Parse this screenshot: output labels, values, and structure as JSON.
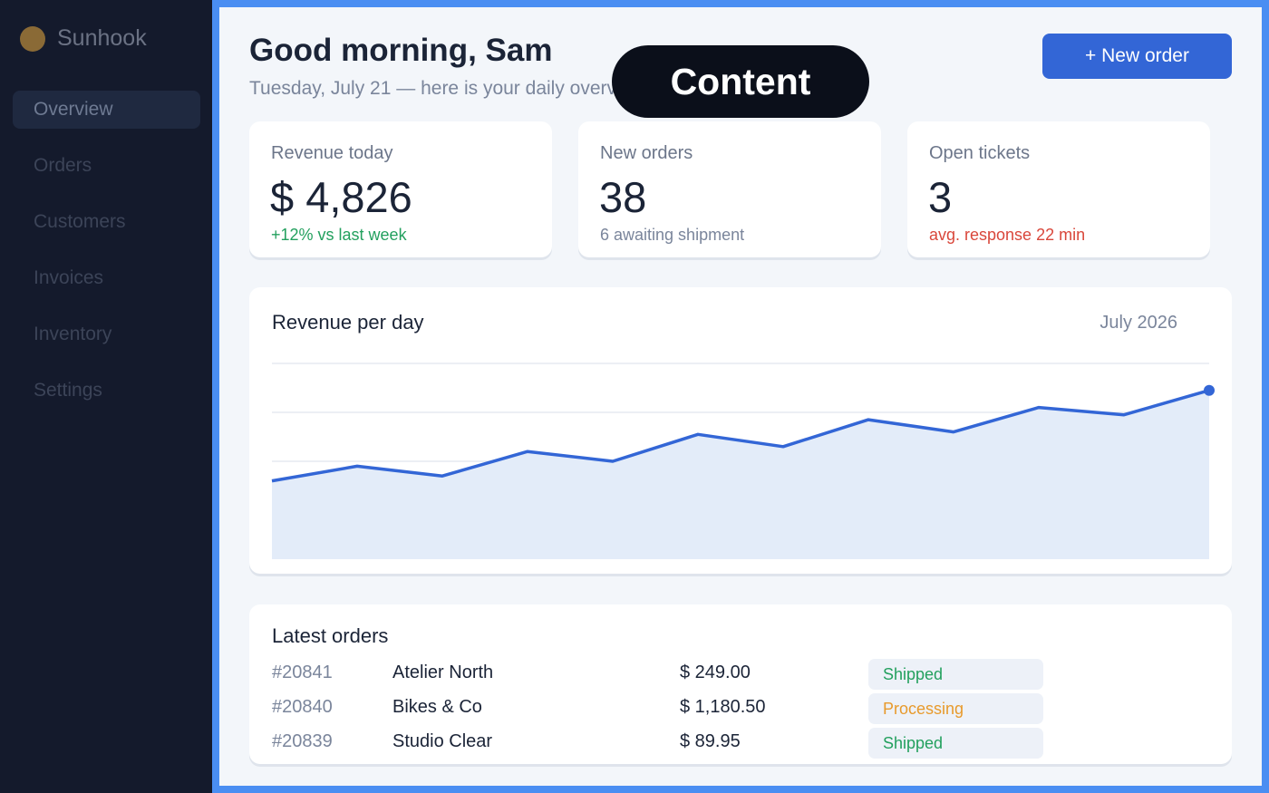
{
  "sidebar": {
    "brand": "Sunhook",
    "items": [
      {
        "label": "Overview",
        "active": true
      },
      {
        "label": "Orders",
        "active": false
      },
      {
        "label": "Customers",
        "active": false
      },
      {
        "label": "Invoices",
        "active": false
      },
      {
        "label": "Inventory",
        "active": false
      },
      {
        "label": "Settings",
        "active": false
      }
    ]
  },
  "header": {
    "greeting": "Good morning, Sam",
    "subtitle": "Tuesday, July 21 — here is your daily overview",
    "new_order_label": "+ New order",
    "overlay_label": "Content"
  },
  "stats": [
    {
      "label": "Revenue today",
      "value": "$ 4,826",
      "note": "+12% vs last week",
      "note_color": "#23a05e"
    },
    {
      "label": "New orders",
      "value": "38",
      "note": "6 awaiting shipment",
      "note_color": "#7a859b"
    },
    {
      "label": "Open tickets",
      "value": "3",
      "note": "avg. response 22 min",
      "note_color": "#d9473b"
    }
  ],
  "chart": {
    "title": "Revenue per day",
    "period": "July 2026",
    "color_line": "#3366d6",
    "color_fill": "#e3ecf9"
  },
  "chart_data": {
    "type": "area",
    "title": "Revenue per day",
    "xlabel": "",
    "ylabel": "",
    "x": [
      1,
      2,
      3,
      4,
      5,
      6,
      7,
      8,
      9,
      10,
      11,
      12
    ],
    "values": [
      32,
      38,
      34,
      44,
      40,
      51,
      46,
      57,
      52,
      62,
      59,
      69
    ],
    "ylim": [
      0,
      80
    ],
    "grid": true,
    "legend": "none"
  },
  "orders": {
    "title": "Latest orders",
    "rows": [
      {
        "id": "#20841",
        "customer": "Atelier North",
        "amount": "$ 249.00",
        "status": "Shipped",
        "status_color": "#23a05e"
      },
      {
        "id": "#20840",
        "customer": "Bikes & Co",
        "amount": "$ 1,180.50",
        "status": "Processing",
        "status_color": "#e89a2c"
      },
      {
        "id": "#20839",
        "customer": "Studio Clear",
        "amount": "$ 89.95",
        "status": "Shipped",
        "status_color": "#23a05e"
      }
    ]
  }
}
